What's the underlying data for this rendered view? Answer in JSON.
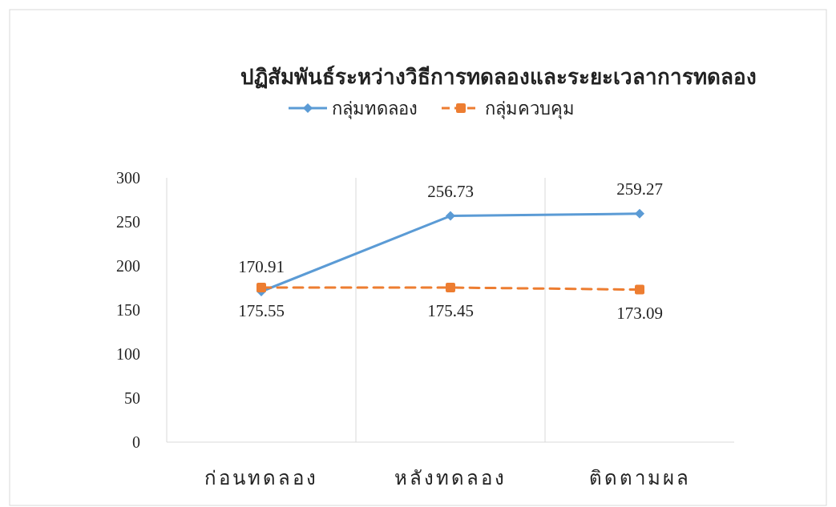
{
  "chart_data": {
    "type": "line",
    "title": "ปฏิสัมพันธ์ระหว่างวิธีการทดลองและระยะเวลาการทดลอง",
    "categories": [
      "ก่อนทดลอง",
      "หลังทดลอง",
      "ติดตามผล"
    ],
    "series": [
      {
        "name": "กลุ่มทดลอง",
        "color": "#5b9bd5",
        "values": [
          170.91,
          256.73,
          259.27
        ],
        "marker": "diamond",
        "line_style": "solid"
      },
      {
        "name": "กลุ่มควบคุม",
        "color": "#ed7d31",
        "values": [
          175.55,
          175.45,
          173.09
        ],
        "marker": "square",
        "line_style": "dashed"
      }
    ],
    "ylim": [
      0,
      300
    ],
    "yticks": [
      0,
      50,
      100,
      150,
      200,
      250,
      300
    ],
    "grid": "x",
    "legend": "top",
    "data_labels": true
  }
}
